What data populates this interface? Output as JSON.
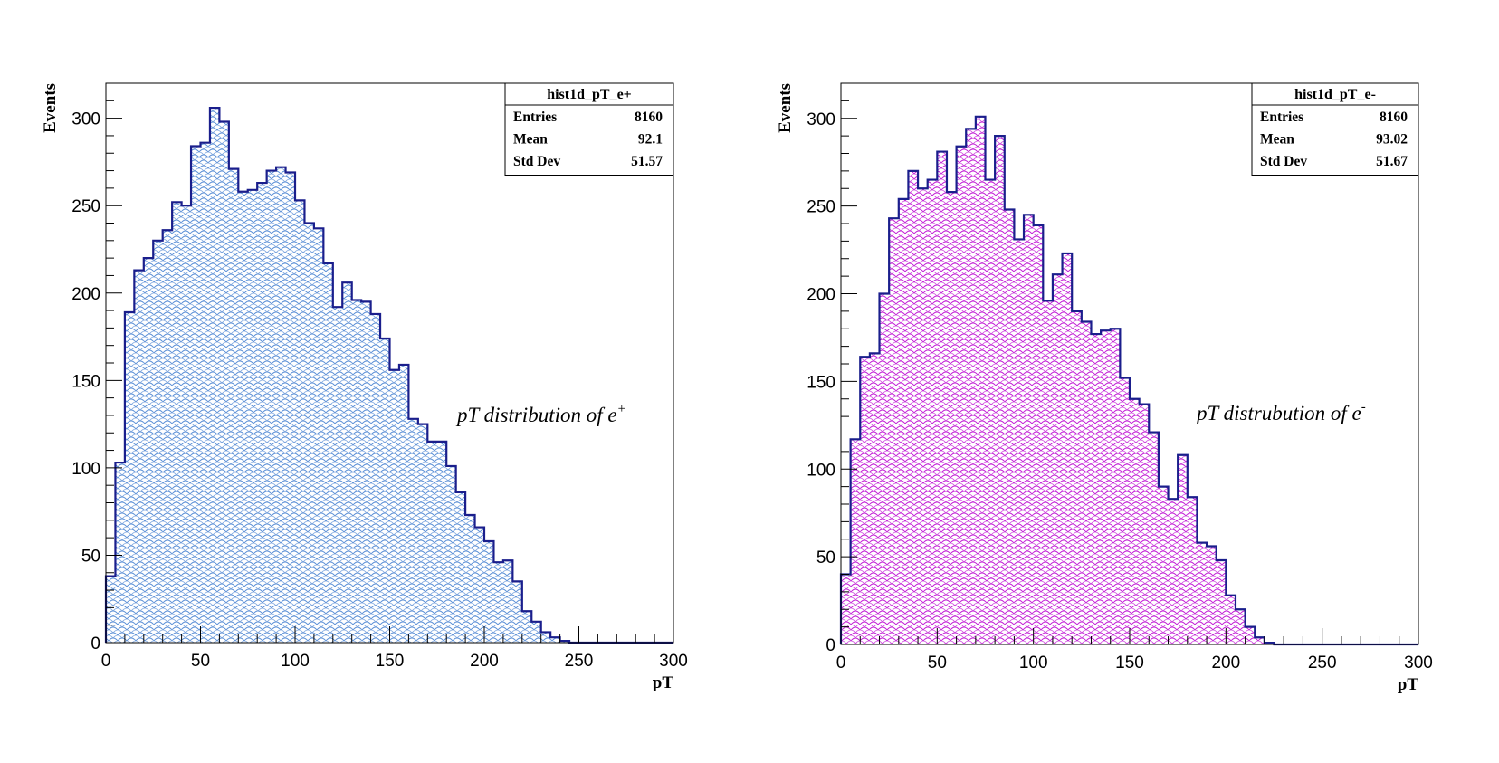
{
  "chart_data": [
    {
      "type": "bar",
      "title": "",
      "stats_box": {
        "name": "hist1d_pT_e+",
        "rows": [
          {
            "label": "Entries",
            "value": "8160"
          },
          {
            "label": "Mean",
            "value": "92.1"
          },
          {
            "label": "Std Dev",
            "value": "51.57"
          }
        ]
      },
      "xlabel": "pT",
      "ylabel": "Events",
      "xlim": [
        0,
        300
      ],
      "ylim": [
        0,
        320
      ],
      "x_ticks": [
        0,
        50,
        100,
        150,
        200,
        250,
        300
      ],
      "y_ticks": [
        0,
        50,
        100,
        150,
        200,
        250,
        300
      ],
      "bin_width": 5,
      "values": [
        38,
        103,
        189,
        213,
        220,
        230,
        236,
        252,
        250,
        284,
        286,
        306,
        298,
        271,
        258,
        259,
        263,
        270,
        272,
        269,
        253,
        240,
        237,
        217,
        192,
        206,
        196,
        195,
        188,
        174,
        156,
        159,
        128,
        125,
        115,
        115,
        101,
        86,
        73,
        66,
        58,
        46,
        47,
        35,
        18,
        12,
        6,
        3,
        1,
        0,
        0,
        0,
        0,
        0,
        0,
        0,
        0,
        0,
        0,
        0
      ],
      "annotation_text": "pT distribution of  e",
      "annotation_sup": "+",
      "colors": {
        "line": "#1a1e8c",
        "fill": "#5b8fd6"
      }
    },
    {
      "type": "bar",
      "title": "",
      "stats_box": {
        "name": "hist1d_pT_e-",
        "rows": [
          {
            "label": "Entries",
            "value": "8160"
          },
          {
            "label": "Mean",
            "value": "93.02"
          },
          {
            "label": "Std Dev",
            "value": "51.67"
          }
        ]
      },
      "xlabel": "pT",
      "ylabel": "Events",
      "xlim": [
        0,
        300
      ],
      "ylim": [
        0,
        320
      ],
      "x_ticks": [
        0,
        50,
        100,
        150,
        200,
        250,
        300
      ],
      "y_ticks": [
        0,
        50,
        100,
        150,
        200,
        250,
        300
      ],
      "bin_width": 5,
      "values": [
        40,
        117,
        164,
        166,
        200,
        243,
        254,
        270,
        260,
        265,
        281,
        258,
        284,
        294,
        301,
        265,
        290,
        248,
        231,
        245,
        239,
        196,
        211,
        223,
        190,
        184,
        177,
        179,
        180,
        152,
        140,
        137,
        121,
        90,
        83,
        108,
        84,
        58,
        56,
        48,
        28,
        20,
        10,
        4,
        1,
        0,
        0,
        0,
        0,
        0,
        0,
        0,
        0,
        0,
        0,
        0,
        0,
        0,
        0,
        0
      ],
      "annotation_text": "pT distrubution of  e",
      "annotation_sup": "-",
      "colors": {
        "line": "#1a1e8c",
        "fill": "#c21fd6"
      }
    }
  ]
}
